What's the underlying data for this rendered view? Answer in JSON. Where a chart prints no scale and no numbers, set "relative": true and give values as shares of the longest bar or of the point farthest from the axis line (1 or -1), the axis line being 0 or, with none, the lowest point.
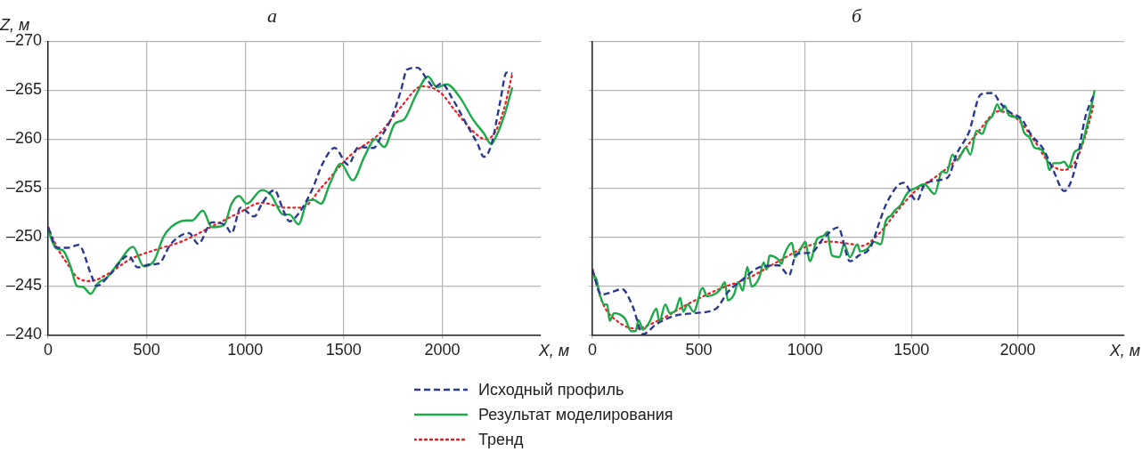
{
  "chart_data": [
    {
      "type": "line",
      "title": "а",
      "xlabel": "X, м",
      "ylabel": "Z, м",
      "legend": "bottom",
      "grid": true,
      "marker": "none",
      "xlim": [
        0,
        2500
      ],
      "xticks": [
        0,
        500,
        1000,
        1500,
        2000
      ],
      "ylim": [
        -240,
        -270
      ],
      "yticks": [
        {
          "value": -240,
          "label": "–240"
        },
        {
          "value": -245,
          "label": "–245"
        },
        {
          "value": -250,
          "label": "–250"
        },
        {
          "value": -255,
          "label": "–255"
        },
        {
          "value": -260,
          "label": "–260"
        },
        {
          "value": -265,
          "label": "–265"
        },
        {
          "value": -270,
          "label": "–270"
        }
      ],
      "series": [
        {
          "name": "Исходный профиль",
          "color": "#2b3990",
          "line_style": "dashed",
          "x": [
            0,
            46,
            100,
            154,
            223,
            246,
            315,
            408,
            454,
            515,
            562,
            623,
            715,
            762,
            831,
            900,
            931,
            977,
            1046,
            1085,
            1148,
            1194,
            1225,
            1271,
            1339,
            1393,
            1454,
            1523,
            1576,
            1653,
            1683,
            1745,
            1791,
            1821,
            1875,
            1920,
            1959,
            1997,
            2050,
            2127,
            2180,
            2211,
            2249,
            2295,
            2326,
            2356
          ],
          "values": [
            -251.0,
            -248.9,
            -248.9,
            -249.2,
            -245.9,
            -245.0,
            -246.2,
            -248.1,
            -246.9,
            -247.2,
            -247.3,
            -249.3,
            -250.4,
            -249.3,
            -251.5,
            -251.2,
            -250.4,
            -253.0,
            -252.1,
            -253.4,
            -254.8,
            -252.7,
            -251.6,
            -252.4,
            -254.8,
            -257.5,
            -259.1,
            -257.4,
            -259.2,
            -259.1,
            -260.0,
            -262.3,
            -265.0,
            -267.1,
            -267.3,
            -266.2,
            -265.3,
            -265.7,
            -264.2,
            -261.4,
            -259.5,
            -258.2,
            -259.4,
            -263.9,
            -266.8,
            -266.7
          ]
        },
        {
          "name": "Результат моделирования",
          "color": "#1aaa48",
          "line_style": "solid",
          "x": [
            0,
            38,
            77,
            115,
            146,
            177,
            215,
            254,
            300,
            362,
            431,
            485,
            538,
            585,
            623,
            700,
            731,
            785,
            831,
            892,
            931,
            969,
            1008,
            1085,
            1131,
            1194,
            1225,
            1271,
            1317,
            1347,
            1385,
            1431,
            1485,
            1546,
            1607,
            1661,
            1706,
            1760,
            1806,
            1867,
            1928,
            1974,
            2023,
            2089,
            2157,
            2211,
            2249,
            2272,
            2318,
            2356
          ],
          "values": [
            -250.7,
            -248.9,
            -248.6,
            -246.9,
            -245.0,
            -244.9,
            -244.2,
            -245.3,
            -245.9,
            -247.5,
            -249.0,
            -247.0,
            -247.6,
            -250.0,
            -251.0,
            -251.7,
            -251.7,
            -252.7,
            -251.0,
            -251.2,
            -253.4,
            -254.2,
            -253.4,
            -254.8,
            -254.3,
            -252.3,
            -252.3,
            -251.3,
            -253.7,
            -253.8,
            -253.4,
            -255.5,
            -257.5,
            -255.8,
            -258.3,
            -260.0,
            -259.2,
            -261.6,
            -262.0,
            -264.5,
            -266.4,
            -265.3,
            -265.6,
            -264.3,
            -262.0,
            -260.6,
            -259.5,
            -260.2,
            -262.6,
            -265.3
          ]
        },
        {
          "name": "Тренд",
          "color": "#ed1c24",
          "line_style": "dotted",
          "x": [
            0,
            46,
            100,
            146,
            215,
            300,
            423,
            546,
            685,
            823,
            962,
            1085,
            1200,
            1286,
            1393,
            1531,
            1683,
            1791,
            1898,
            1989,
            2066,
            2157,
            2219,
            2265,
            2311,
            2356
          ],
          "values": [
            -251.0,
            -248.9,
            -247.2,
            -245.9,
            -245.5,
            -246.2,
            -247.8,
            -248.7,
            -249.6,
            -251.0,
            -252.4,
            -253.5,
            -253.0,
            -253.0,
            -255.2,
            -258.3,
            -260.6,
            -263.3,
            -265.4,
            -264.8,
            -262.9,
            -260.8,
            -260.0,
            -260.6,
            -262.9,
            -266.7
          ]
        }
      ]
    },
    {
      "type": "line",
      "title": "б",
      "xlabel": "X, м",
      "legend": false,
      "grid": true,
      "marker": "none",
      "relative": true,
      "tick_labels": "x",
      "xlim": [
        0,
        2500
      ],
      "xticks": [
        0,
        500,
        1000,
        1500,
        2000
      ],
      "series": [
        {
          "color": "#2b3990",
          "line_style": "dashed",
          "x": [
            0,
            42,
            91,
            140,
            189,
            238,
            301,
            385,
            483,
            581,
            637,
            707,
            791,
            875,
            924,
            959,
            1029,
            1085,
            1155,
            1211,
            1252,
            1308,
            1350,
            1385,
            1462,
            1525,
            1560,
            1630,
            1672,
            1714,
            1770,
            1826,
            1882,
            1917,
            1966,
            2015,
            2064,
            2120,
            2169,
            2218,
            2253,
            2281,
            2316,
            2358
          ],
          "values": [
            0.267,
            0.164,
            0.175,
            0.187,
            0.118,
            0.003,
            0.044,
            0.078,
            0.089,
            0.107,
            0.175,
            0.227,
            0.278,
            0.284,
            0.244,
            0.33,
            0.336,
            0.393,
            0.439,
            0.301,
            0.324,
            0.359,
            0.462,
            0.542,
            0.622,
            0.548,
            0.611,
            0.633,
            0.645,
            0.742,
            0.828,
            0.983,
            0.989,
            0.948,
            0.908,
            0.885,
            0.817,
            0.759,
            0.668,
            0.588,
            0.633,
            0.725,
            0.885,
            0.983
          ]
        },
        {
          "color": "#1aaa48",
          "line_style": "solid",
          "x": [
            0,
            14,
            35,
            56,
            70,
            81,
            102,
            154,
            182,
            203,
            217,
            238,
            266,
            301,
            315,
            343,
            364,
            392,
            413,
            427,
            448,
            476,
            518,
            539,
            581,
            602,
            623,
            637,
            665,
            686,
            707,
            728,
            749,
            784,
            805,
            819,
            833,
            875,
            889,
            903,
            938,
            952,
            987,
            1001,
            1022,
            1057,
            1085,
            1106,
            1113,
            1127,
            1162,
            1183,
            1211,
            1245,
            1259,
            1294,
            1322,
            1357,
            1378,
            1406,
            1420,
            1448,
            1483,
            1518,
            1560,
            1609,
            1644,
            1665,
            1693,
            1714,
            1756,
            1777,
            1805,
            1833,
            1854,
            1882,
            1903,
            1921,
            1938,
            1959,
            1980,
            2008,
            2029,
            2057,
            2078,
            2106,
            2134,
            2148,
            2169,
            2197,
            2218,
            2239,
            2267,
            2295,
            2330,
            2361
          ],
          "values": [
            0.233,
            0.238,
            0.164,
            0.124,
            0.124,
            0.058,
            0.089,
            0.066,
            0.015,
            0.015,
            0.061,
            0.021,
            0.049,
            0.107,
            0.055,
            0.124,
            0.089,
            0.101,
            0.152,
            0.095,
            0.124,
            0.095,
            0.192,
            0.158,
            0.17,
            0.187,
            0.215,
            0.141,
            0.164,
            0.215,
            0.181,
            0.278,
            0.198,
            0.233,
            0.296,
            0.267,
            0.324,
            0.307,
            0.29,
            0.33,
            0.376,
            0.318,
            0.364,
            0.381,
            0.301,
            0.393,
            0.404,
            0.422,
            0.381,
            0.324,
            0.318,
            0.37,
            0.318,
            0.37,
            0.341,
            0.353,
            0.381,
            0.37,
            0.462,
            0.49,
            0.507,
            0.53,
            0.582,
            0.599,
            0.616,
            0.576,
            0.668,
            0.662,
            0.737,
            0.714,
            0.765,
            0.737,
            0.834,
            0.822,
            0.868,
            0.897,
            0.943,
            0.914,
            0.937,
            0.897,
            0.891,
            0.885,
            0.828,
            0.805,
            0.765,
            0.759,
            0.725,
            0.674,
            0.702,
            0.702,
            0.708,
            0.685,
            0.748,
            0.765,
            0.874,
            1.0
          ]
        },
        {
          "color": "#ed1c24",
          "line_style": "dotted",
          "x": [
            0,
            49,
            119,
            203,
            315,
            455,
            595,
            735,
            875,
            1015,
            1113,
            1225,
            1266,
            1350,
            1434,
            1518,
            1630,
            1714,
            1812,
            1910,
            1994,
            2078,
            2148,
            2218,
            2274,
            2330,
            2358
          ],
          "values": [
            0.27,
            0.129,
            0.055,
            0.026,
            0.061,
            0.129,
            0.187,
            0.233,
            0.301,
            0.364,
            0.381,
            0.37,
            0.364,
            0.416,
            0.507,
            0.588,
            0.656,
            0.719,
            0.828,
            0.914,
            0.885,
            0.794,
            0.702,
            0.674,
            0.714,
            0.851,
            0.948
          ]
        }
      ]
    }
  ]
}
